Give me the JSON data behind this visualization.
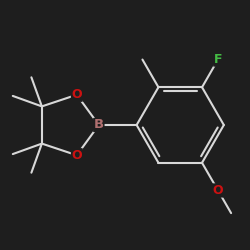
{
  "bg_color": "#1e1e1e",
  "bond_color": "#d8d8d8",
  "bond_width": 1.5,
  "atom_colors": {
    "B": "#b07070",
    "O": "#cc1111",
    "F": "#44bb44",
    "C": "#d8d8d8"
  },
  "font_size": 9,
  "figsize": [
    2.5,
    2.5
  ],
  "dpi": 100,
  "ring_r": 0.75
}
